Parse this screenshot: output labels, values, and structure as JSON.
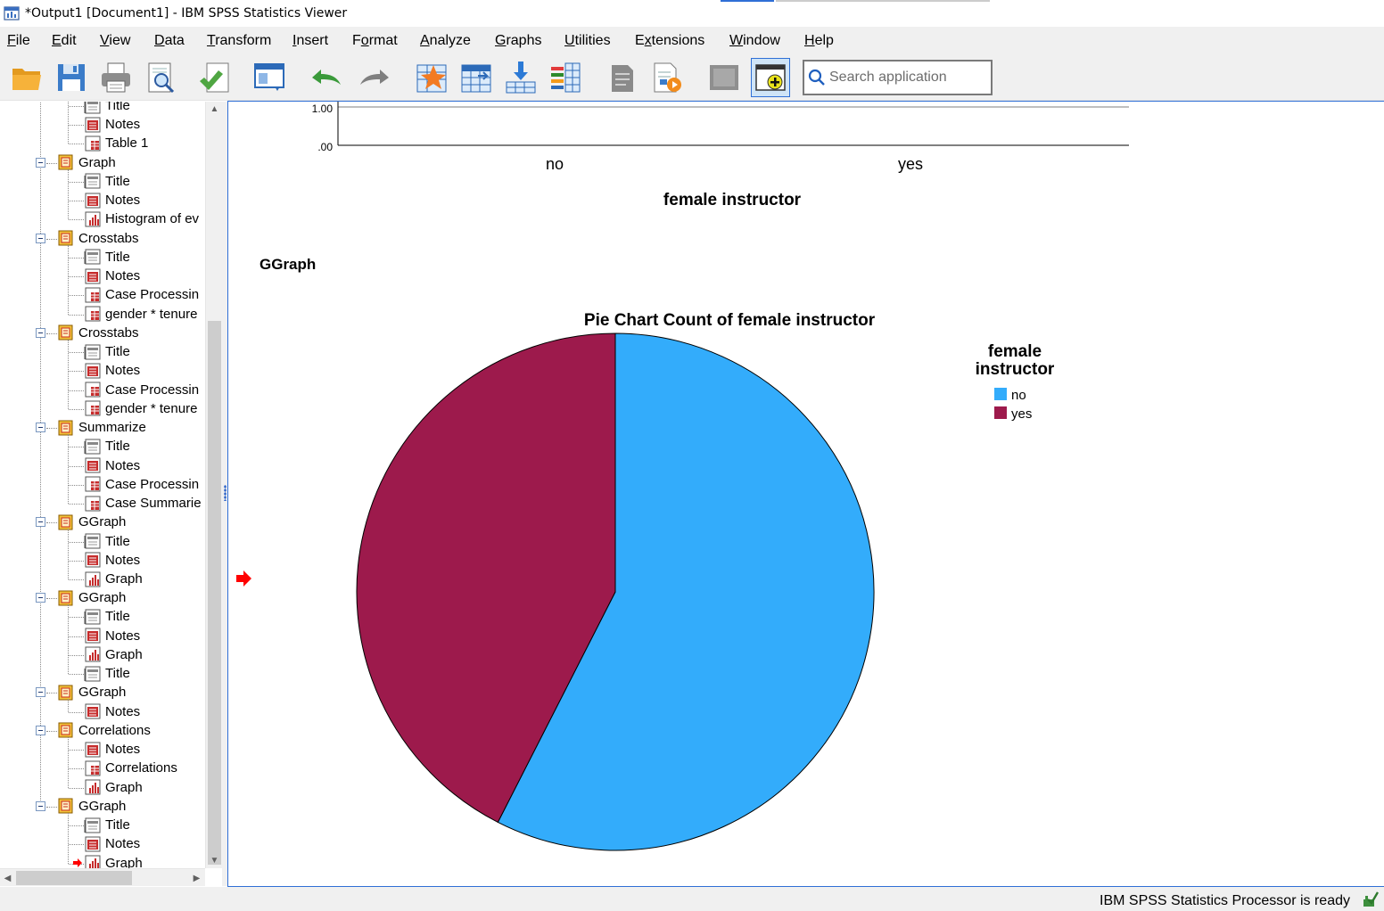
{
  "window": {
    "title": "*Output1 [Document1] - IBM SPSS Statistics Viewer"
  },
  "menu": [
    {
      "pre": "",
      "acc": "F",
      "post": "ile"
    },
    {
      "pre": "",
      "acc": "E",
      "post": "dit"
    },
    {
      "pre": "",
      "acc": "V",
      "post": "iew"
    },
    {
      "pre": "",
      "acc": "D",
      "post": "ata"
    },
    {
      "pre": "",
      "acc": "T",
      "post": "ransform"
    },
    {
      "pre": "",
      "acc": "I",
      "post": "nsert"
    },
    {
      "pre": "F",
      "acc": "o",
      "post": "rmat"
    },
    {
      "pre": "",
      "acc": "A",
      "post": "nalyze"
    },
    {
      "pre": "",
      "acc": "G",
      "post": "raphs"
    },
    {
      "pre": "",
      "acc": "U",
      "post": "tilities"
    },
    {
      "pre": "E",
      "acc": "x",
      "post": "tensions"
    },
    {
      "pre": "",
      "acc": "W",
      "post": "indow"
    },
    {
      "pre": "",
      "acc": "H",
      "post": "elp"
    }
  ],
  "toolbar": {
    "buttons": [
      "open-folder-icon",
      "save-icon",
      "print-icon",
      "print-preview-icon",
      "export-icon",
      "recall-dialog-icon",
      "undo-icon",
      "redo-icon",
      "goto-data-icon",
      "goto-case-icon",
      "select-last-output-icon",
      "designate-window-icon",
      "promote-icon",
      "demote-icon",
      "show-hide-icon",
      "insert-output-icon"
    ],
    "search_placeholder": "Search application"
  },
  "outline": {
    "items": [
      {
        "level": 1,
        "label": "Title",
        "icon": "title-icon"
      },
      {
        "level": 1,
        "label": "Notes",
        "icon": "notes-icon"
      },
      {
        "level": 1,
        "label": "Table 1",
        "icon": "table-icon"
      },
      {
        "level": 0,
        "label": "Graph",
        "icon": "book-icon"
      },
      {
        "level": 1,
        "label": "Title",
        "icon": "title-icon"
      },
      {
        "level": 1,
        "label": "Notes",
        "icon": "notes-icon"
      },
      {
        "level": 1,
        "label": "Histogram of ev",
        "icon": "chart-icon"
      },
      {
        "level": 0,
        "label": "Crosstabs",
        "icon": "book-icon"
      },
      {
        "level": 1,
        "label": "Title",
        "icon": "title-icon"
      },
      {
        "level": 1,
        "label": "Notes",
        "icon": "notes-icon"
      },
      {
        "level": 1,
        "label": "Case Processin",
        "icon": "table-icon"
      },
      {
        "level": 1,
        "label": "gender * tenure",
        "icon": "table-icon"
      },
      {
        "level": 0,
        "label": "Crosstabs",
        "icon": "book-icon"
      },
      {
        "level": 1,
        "label": "Title",
        "icon": "title-icon"
      },
      {
        "level": 1,
        "label": "Notes",
        "icon": "notes-icon"
      },
      {
        "level": 1,
        "label": "Case Processin",
        "icon": "table-icon"
      },
      {
        "level": 1,
        "label": "gender * tenure",
        "icon": "table-icon"
      },
      {
        "level": 0,
        "label": "Summarize",
        "icon": "book-icon"
      },
      {
        "level": 1,
        "label": "Title",
        "icon": "title-icon"
      },
      {
        "level": 1,
        "label": "Notes",
        "icon": "notes-icon"
      },
      {
        "level": 1,
        "label": "Case Processin",
        "icon": "table-icon"
      },
      {
        "level": 1,
        "label": "Case Summarie",
        "icon": "table-icon"
      },
      {
        "level": 0,
        "label": "GGraph",
        "icon": "book-icon"
      },
      {
        "level": 1,
        "label": "Title",
        "icon": "title-icon"
      },
      {
        "level": 1,
        "label": "Notes",
        "icon": "notes-icon"
      },
      {
        "level": 1,
        "label": "Graph",
        "icon": "chart-icon"
      },
      {
        "level": 0,
        "label": "GGraph",
        "icon": "book-icon"
      },
      {
        "level": 1,
        "label": "Title",
        "icon": "title-icon"
      },
      {
        "level": 1,
        "label": "Notes",
        "icon": "notes-icon"
      },
      {
        "level": 1,
        "label": "Graph",
        "icon": "chart-icon"
      },
      {
        "level": 1,
        "label": "Title",
        "icon": "title-icon"
      },
      {
        "level": 0,
        "label": "GGraph",
        "icon": "book-icon"
      },
      {
        "level": 1,
        "label": "Notes",
        "icon": "notes-icon"
      },
      {
        "level": 0,
        "label": "Correlations",
        "icon": "book-icon"
      },
      {
        "level": 1,
        "label": "Notes",
        "icon": "notes-icon"
      },
      {
        "level": 1,
        "label": "Correlations",
        "icon": "table-icon"
      },
      {
        "level": 1,
        "label": "Graph",
        "icon": "chart-icon"
      },
      {
        "level": 0,
        "label": "GGraph",
        "icon": "book-icon"
      },
      {
        "level": 1,
        "label": "Title",
        "icon": "title-icon"
      },
      {
        "level": 1,
        "label": "Notes",
        "icon": "notes-icon"
      },
      {
        "level": 1,
        "label": "Graph",
        "icon": "chart-icon",
        "current": true
      }
    ]
  },
  "contents": {
    "bar_chart_tail": {
      "y_ticks": [
        "1.00",
        ".00"
      ],
      "categories": [
        "no",
        "yes"
      ],
      "xlabel": "female instructor"
    },
    "section_heading": "GGraph",
    "pie_title": "Pie Chart Count of female instructor",
    "legend_title_line1": "female",
    "legend_title_line2": "instructor"
  },
  "chart_data": [
    {
      "type": "bar",
      "categories": [
        "no",
        "yes"
      ],
      "xlabel": "female instructor",
      "ylabel": "",
      "y_ticks": [
        ".00",
        "1.00"
      ],
      "partial": true
    },
    {
      "type": "pie",
      "title": "Pie Chart Count of female instructor",
      "legend_title": "female instructor",
      "legend_position": "top-right",
      "categories": [
        "no",
        "yes"
      ],
      "values": [
        57.5,
        42.5
      ],
      "colors": [
        "#33acfb",
        "#9d1a4c"
      ]
    }
  ],
  "colors": {
    "pie_no": "#33acfb",
    "pie_yes": "#9d1a4c",
    "selection_border": "#2f6fd6",
    "current_arrow": "#ff0000"
  },
  "status": {
    "text": "IBM SPSS Statistics Processor is ready"
  }
}
